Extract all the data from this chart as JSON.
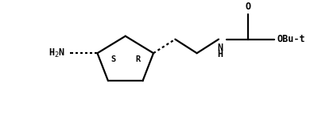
{
  "bg_color": "#ffffff",
  "line_color": "#000000",
  "font_color": "#000000",
  "font_family": "monospace",
  "fig_width": 3.95,
  "fig_height": 1.53,
  "dpi": 100,
  "S_label": "S",
  "R_label": "R",
  "H2N_label": "H$_2$N",
  "O_label": "O",
  "OBut_label": "OBu-t",
  "lw": 1.6,
  "fontsize_labels": 8.5,
  "fontsize_sr": 7.5,
  "fontsize_o": 8.5,
  "fontsize_obut": 8.5,
  "fontsize_nh": 8.5
}
